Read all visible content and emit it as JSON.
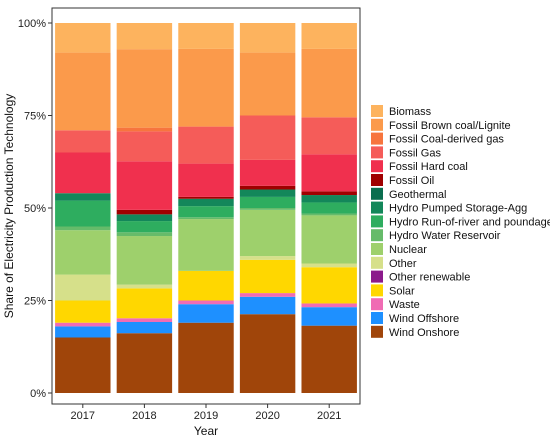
{
  "chart_data": {
    "type": "bar",
    "stacked": true,
    "normalized": true,
    "title": "",
    "xlabel": "Year",
    "ylabel": "Share of Electricity Production Technology",
    "ylim": [
      0,
      100
    ],
    "y_ticks": [
      "0%",
      "25%",
      "50%",
      "75%",
      "100%"
    ],
    "grid": false,
    "legend_position": "right",
    "categories": [
      "2017",
      "2018",
      "2019",
      "2020",
      "2021"
    ],
    "series": [
      {
        "name": "Wind Onshore",
        "color": "#A0450A",
        "values": [
          15,
          16,
          19,
          21.3,
          18.2
        ]
      },
      {
        "name": "Wind Offshore",
        "color": "#1E90FF",
        "values": [
          3,
          3,
          5,
          4.7,
          5
        ]
      },
      {
        "name": "Waste",
        "color": "#F06CB4",
        "values": [
          1,
          1,
          1,
          1,
          1
        ]
      },
      {
        "name": "Solar",
        "color": "#FFD700",
        "values": [
          6,
          8,
          8,
          9,
          9.8
        ]
      },
      {
        "name": "Other renewable",
        "color": "#8B1A8B",
        "values": [
          0,
          0,
          0,
          0,
          0
        ]
      },
      {
        "name": "Other",
        "color": "#D6E08A",
        "values": [
          7,
          1,
          0,
          1,
          1
        ]
      },
      {
        "name": "Nuclear",
        "color": "#9ED06C",
        "values": [
          12,
          13,
          14,
          12.5,
          13
        ]
      },
      {
        "name": "Hydro Water Reservoir",
        "color": "#66BB6A",
        "values": [
          1,
          1,
          0.5,
          0.5,
          0.5
        ]
      },
      {
        "name": "Hydro Run-of-river and poundage",
        "color": "#2EAD5F",
        "values": [
          7,
          3,
          3,
          3,
          3
        ]
      },
      {
        "name": "Hydro Pumped Storage-Agg",
        "color": "#13875A",
        "values": [
          2,
          1.8,
          2,
          2,
          2
        ]
      },
      {
        "name": "Geothermal",
        "color": "#0B6E4F",
        "values": [
          0,
          0,
          0,
          0,
          0
        ]
      },
      {
        "name": "Fossil Oil",
        "color": "#A00000",
        "values": [
          0,
          1.2,
          0.5,
          1,
          1
        ]
      },
      {
        "name": "Fossil Hard coal",
        "color": "#F0304E",
        "values": [
          11,
          13,
          9,
          7,
          10
        ]
      },
      {
        "name": "Fossil Gas",
        "color": "#F55C59",
        "values": [
          6,
          8,
          10,
          12,
          10
        ]
      },
      {
        "name": "Fossil Coal-derived gas",
        "color": "#F7753E",
        "values": [
          0,
          1,
          0,
          0,
          0
        ]
      },
      {
        "name": "Fossil Brown coal/Lignite",
        "color": "#FB9A4B",
        "values": [
          21,
          21,
          21,
          17,
          18.5
        ]
      },
      {
        "name": "Biomass",
        "color": "#FDB35E",
        "values": [
          8,
          7,
          7,
          8,
          7
        ]
      }
    ]
  }
}
